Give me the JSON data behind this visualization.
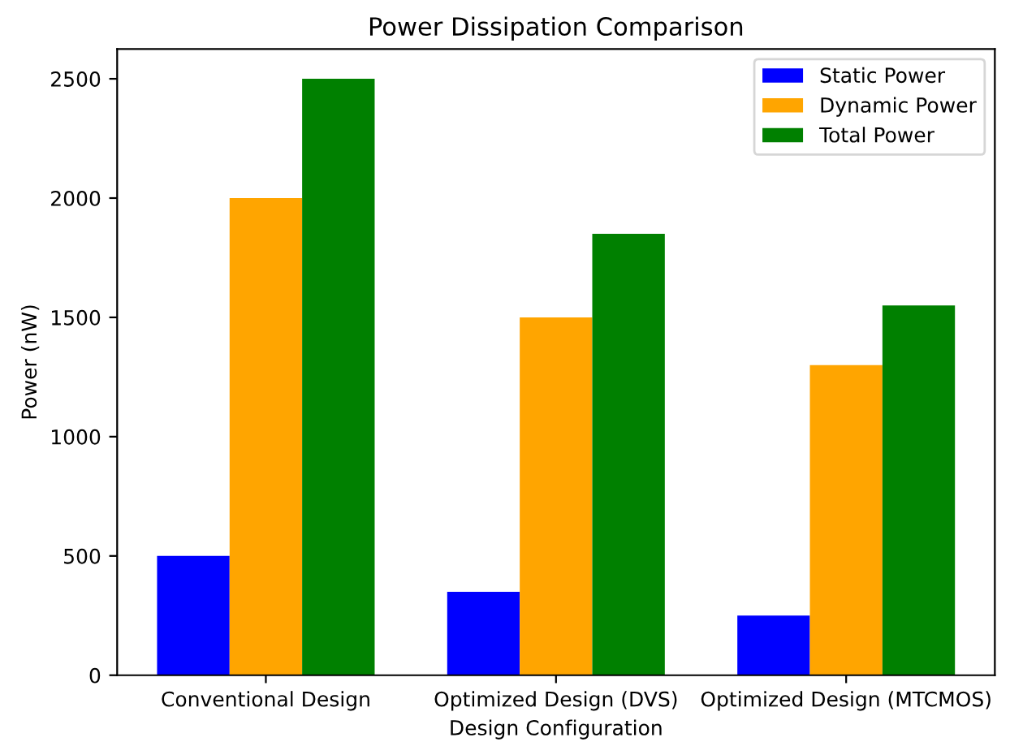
{
  "chart_data": {
    "type": "bar",
    "title": "Power Dissipation Comparison",
    "xlabel": "Design Configuration",
    "ylabel": "Power (nW)",
    "categories": [
      "Conventional Design",
      "Optimized Design (DVS)",
      "Optimized Design (MTCMOS)"
    ],
    "series": [
      {
        "name": "Static Power",
        "color": "#0000ff",
        "values": [
          500,
          350,
          250
        ]
      },
      {
        "name": "Dynamic Power",
        "color": "#ffa500",
        "values": [
          2000,
          1500,
          1300
        ]
      },
      {
        "name": "Total Power",
        "color": "#008000",
        "values": [
          2500,
          1850,
          1550
        ]
      }
    ],
    "ylim": [
      0,
      2625
    ],
    "yticks": [
      0,
      500,
      1000,
      1500,
      2000,
      2500
    ],
    "legend": "top right",
    "grid": false
  }
}
